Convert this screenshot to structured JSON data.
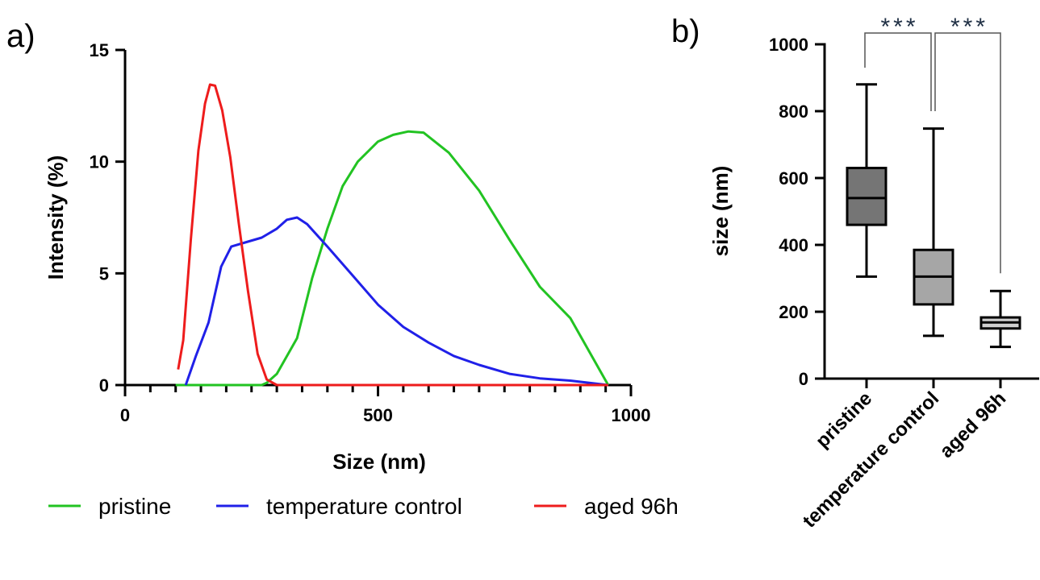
{
  "chart_data": [
    {
      "panel": "a)",
      "type": "line",
      "xlabel": "Size (nm)",
      "ylabel": "Intensity (%)",
      "xlim": [
        0,
        1000
      ],
      "ylim": [
        0,
        15
      ],
      "x_ticks": [
        0,
        500,
        1000
      ],
      "y_ticks": [
        0,
        5,
        10,
        15
      ],
      "grid": false,
      "legend_placement": "bottom",
      "series": [
        {
          "name": "pristine",
          "color": "#22c322",
          "x": [
            100,
            200,
            270,
            280,
            300,
            340,
            370,
            400,
            430,
            460,
            500,
            530,
            560,
            590,
            640,
            700,
            760,
            820,
            880,
            955
          ],
          "y": [
            0,
            0,
            0,
            0.1,
            0.5,
            2.1,
            4.8,
            7.0,
            8.9,
            10.0,
            10.9,
            11.2,
            11.35,
            11.3,
            10.4,
            8.7,
            6.5,
            4.4,
            3.0,
            0
          ]
        },
        {
          "name": "temperature control",
          "color": "#2020e8",
          "x": [
            120,
            140,
            165,
            190,
            210,
            240,
            270,
            300,
            320,
            340,
            360,
            400,
            450,
            500,
            550,
            600,
            650,
            700,
            760,
            820,
            880,
            955
          ],
          "y": [
            0,
            1.3,
            2.8,
            5.3,
            6.2,
            6.4,
            6.6,
            7.0,
            7.4,
            7.5,
            7.2,
            6.2,
            4.9,
            3.6,
            2.6,
            1.9,
            1.3,
            0.9,
            0.5,
            0.3,
            0.2,
            0
          ]
        },
        {
          "name": "aged 96h",
          "color": "#ee1c1c",
          "x": [
            105,
            115,
            130,
            145,
            158,
            168,
            178,
            192,
            208,
            225,
            243,
            262,
            280,
            300,
            500,
            955
          ],
          "y": [
            0.7,
            2.0,
            6.5,
            10.5,
            12.6,
            13.45,
            13.4,
            12.3,
            10.2,
            7.2,
            4.2,
            1.4,
            0.25,
            0,
            0,
            0
          ]
        }
      ]
    },
    {
      "panel": "b)",
      "type": "box",
      "ylabel": "size (nm)",
      "ylim": [
        0,
        1000
      ],
      "y_ticks": [
        0,
        200,
        400,
        600,
        800,
        1000
      ],
      "categories": [
        "pristine",
        "temperature control",
        "aged 96h"
      ],
      "boxes": [
        {
          "min": 305,
          "q1": 460,
          "median": 540,
          "q3": 630,
          "max": 880,
          "fill": "#757575"
        },
        {
          "min": 128,
          "q1": 222,
          "median": 305,
          "q3": 385,
          "max": 748,
          "fill": "#a6a6a6"
        },
        {
          "min": 95,
          "q1": 150,
          "median": 168,
          "q3": 183,
          "max": 262,
          "fill": "#cfcfcf"
        }
      ],
      "significance": [
        {
          "pair": [
            "pristine",
            "temperature control"
          ],
          "label": "***"
        },
        {
          "pair": [
            "temperature control",
            "aged 96h"
          ],
          "label": "***"
        }
      ]
    }
  ]
}
